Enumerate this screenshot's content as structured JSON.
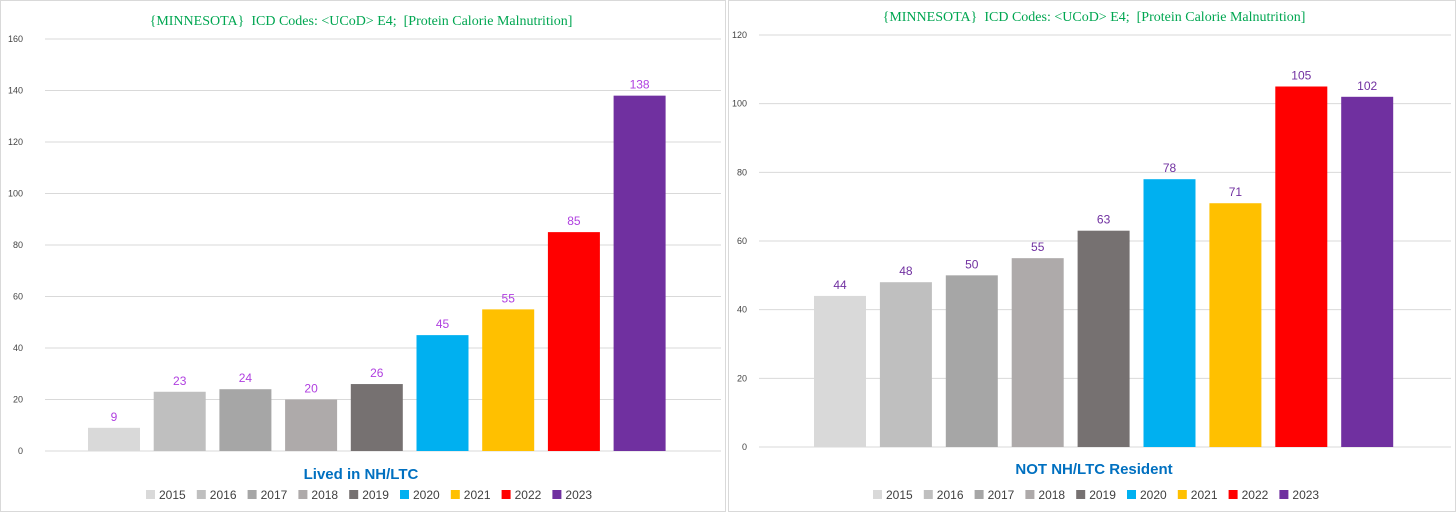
{
  "colors": {
    "title": "#00A651",
    "xtitle": "#0070C0",
    "grid": "#D9D9D9",
    "label_left": "#B040E0",
    "label_right": "#7030A0"
  },
  "legend": [
    {
      "name": "2015",
      "color": "#D9D9D9"
    },
    {
      "name": "2016",
      "color": "#BFBFBF"
    },
    {
      "name": "2017",
      "color": "#A6A6A6"
    },
    {
      "name": "2018",
      "color": "#AEAAAA"
    },
    {
      "name": "2019",
      "color": "#767171"
    },
    {
      "name": "2020",
      "color": "#00B0F0"
    },
    {
      "name": "2021",
      "color": "#FFC000"
    },
    {
      "name": "2022",
      "color": "#FF0000"
    },
    {
      "name": "2023",
      "color": "#7030A0"
    }
  ],
  "chart_data": [
    {
      "type": "bar",
      "title": "{MINNESOTA}  ICD Codes: <UCoD> E4;  [Protein Calorie Malnutrition]",
      "xlabel": "Lived in NH/LTC",
      "ylabel": "",
      "categories": [
        "2015",
        "2016",
        "2017",
        "2018",
        "2019",
        "2020",
        "2021",
        "2022",
        "2023"
      ],
      "values": [
        9,
        23,
        24,
        20,
        26,
        45,
        55,
        85,
        138
      ],
      "ylim": [
        0,
        160
      ],
      "yticks": [
        0,
        20,
        40,
        60,
        80,
        100,
        120,
        140,
        160
      ],
      "grid": true,
      "legend_position": "bottom"
    },
    {
      "type": "bar",
      "title": "{MINNESOTA}  ICD Codes: <UCoD> E4;  [Protein Calorie Malnutrition]",
      "xlabel": "NOT NH/LTC Resident",
      "ylabel": "",
      "categories": [
        "2015",
        "2016",
        "2017",
        "2018",
        "2019",
        "2020",
        "2021",
        "2022",
        "2023"
      ],
      "values": [
        44,
        48,
        50,
        55,
        63,
        78,
        71,
        105,
        102
      ],
      "ylim": [
        0,
        120
      ],
      "yticks": [
        0,
        20,
        40,
        60,
        80,
        100,
        120
      ],
      "grid": true,
      "legend_position": "bottom"
    }
  ]
}
